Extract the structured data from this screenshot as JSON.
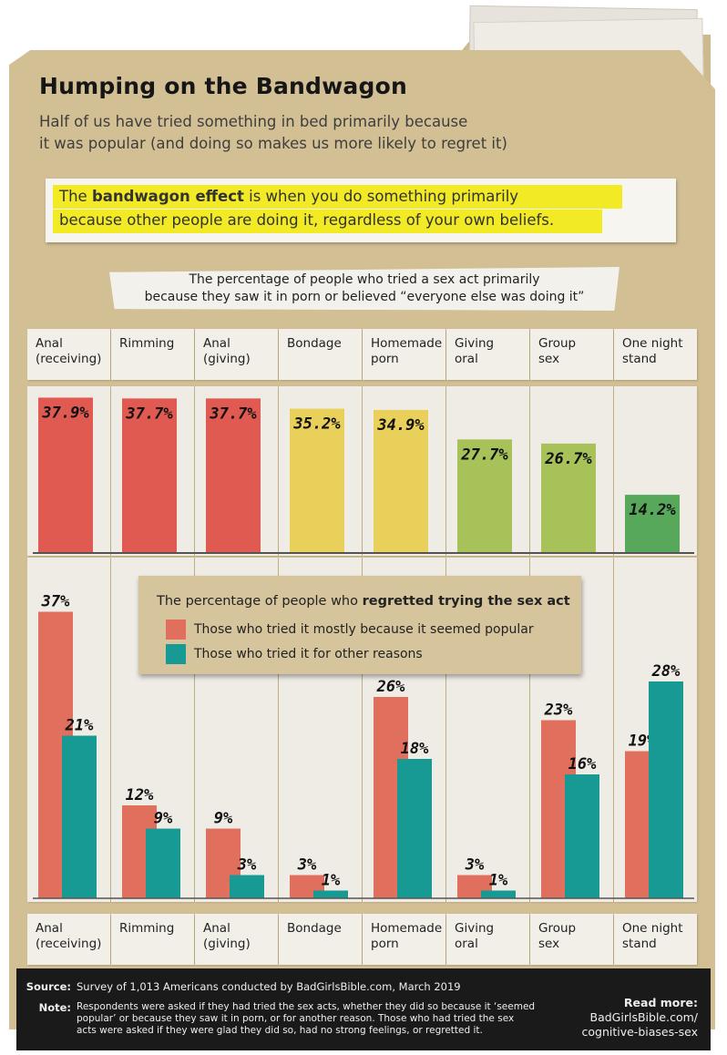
{
  "title": "Humping on the Bandwagon",
  "subtitle_lines": [
    "Half of us have tried something in bed primarily because",
    "it was popular (and doing so makes us more likely to regret it)"
  ],
  "definition": {
    "line1_pre": "The ",
    "term": "bandwagon effect",
    "line1_post": " is when you do something primarily",
    "line2": "because other people are doing it, regardless of your own beliefs."
  },
  "top_caption_lines": [
    "The percentage of people who tried a sex act primarily",
    "because they saw it in porn or believed “everyone else was doing it”"
  ],
  "categories": [
    [
      "Anal",
      "(receiving)"
    ],
    [
      "Rimming"
    ],
    [
      "Anal",
      "(giving)"
    ],
    [
      "Bondage"
    ],
    [
      "Homemade",
      "porn"
    ],
    [
      "Giving",
      "oral"
    ],
    [
      "Group",
      "sex"
    ],
    [
      "One night",
      "stand"
    ]
  ],
  "legend": {
    "title_pre": "The percentage of people who ",
    "title_bold": "regretted trying the sex act",
    "items": [
      "Those who tried it mostly because it seemed popular",
      "Those who tried it for other reasons"
    ]
  },
  "colors": {
    "red_top": "#e05a52",
    "yellow": "#e8d05a",
    "olive": "#a8c25a",
    "green": "#57a85a",
    "regret_popular": "#e06f5e",
    "regret_other": "#169a93"
  },
  "chart_data": [
    {
      "type": "bar",
      "title": "The percentage of people who tried a sex act primarily because they saw it in porn or believed “everyone else was doing it”",
      "categories": [
        "Anal (receiving)",
        "Rimming",
        "Anal (giving)",
        "Bondage",
        "Homemade porn",
        "Giving oral",
        "Group sex",
        "One night stand"
      ],
      "values": [
        37.9,
        37.7,
        37.7,
        35.2,
        34.9,
        27.7,
        26.7,
        14.2
      ],
      "labels": [
        "37.9%",
        "37.7%",
        "37.7%",
        "35.2%",
        "34.9%",
        "27.7%",
        "26.7%",
        "14.2%"
      ],
      "bar_colors": [
        "#e05a52",
        "#e05a52",
        "#e05a52",
        "#e8d05a",
        "#e8d05a",
        "#a8c25a",
        "#a8c25a",
        "#57a85a"
      ],
      "ylim": [
        0,
        40
      ]
    },
    {
      "type": "bar",
      "title": "The percentage of people who regretted trying the sex act",
      "categories": [
        "Anal (receiving)",
        "Rimming",
        "Anal (giving)",
        "Bondage",
        "Homemade porn",
        "Giving oral",
        "Group sex",
        "One night stand"
      ],
      "series": [
        {
          "name": "Those who tried it mostly because it seemed popular",
          "values": [
            37,
            12,
            9,
            3,
            26,
            3,
            23,
            19
          ],
          "labels": [
            "37%",
            "12%",
            "9%",
            "3%",
            "26%",
            "3%",
            "23%",
            "19%"
          ],
          "color": "#e06f5e"
        },
        {
          "name": "Those who tried it for other reasons",
          "values": [
            21,
            9,
            3,
            1,
            18,
            1,
            16,
            28
          ],
          "labels": [
            "21%",
            "9%",
            "3%",
            "1%",
            "18%",
            "1%",
            "16%",
            "28%"
          ],
          "color": "#169a93"
        }
      ],
      "ylim": [
        0,
        40
      ],
      "legend": "center"
    }
  ],
  "footer": {
    "source_key": "Source:",
    "source_text": "Survey of 1,013 Americans conducted by BadGirlsBible.com, March 2019",
    "note_key": "Note:",
    "note_lines": [
      "Respondents were asked if they had tried the sex acts, whether they did so because it ‘seemed",
      "popular’ or because they saw it in porn, or for another reason. Those who had tried the sex",
      "acts were asked if they were glad they did so, had no strong feelings, or regretted it."
    ],
    "read_more": [
      "Read more:",
      "BadGirlsBible.com/",
      "cognitive-biases-sex"
    ]
  }
}
